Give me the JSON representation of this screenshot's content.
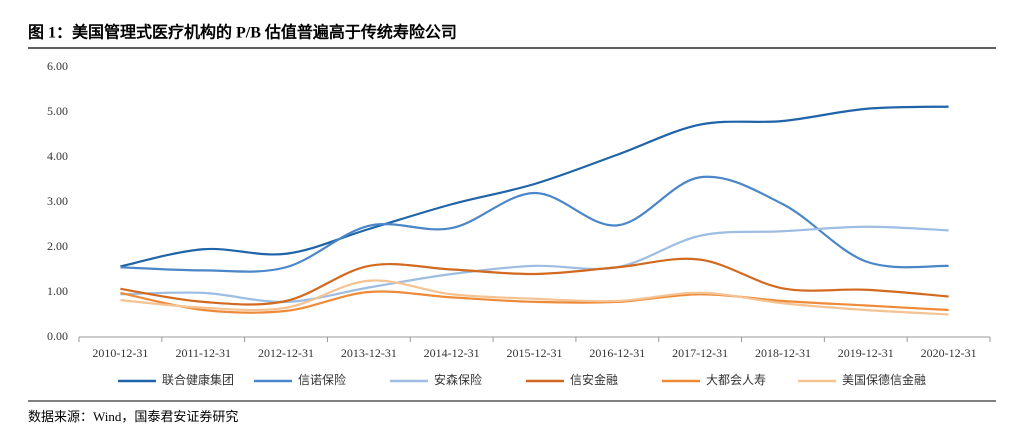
{
  "chart_data": {
    "type": "line",
    "title": "图 1：美国管理式医疗机构的 P/B 估值普遍高于传统寿险公司",
    "source": "数据来源：Wind，国泰君安证券研究",
    "categories": [
      "2010-12-31",
      "2011-12-31",
      "2012-12-31",
      "2013-12-31",
      "2014-12-31",
      "2015-12-31",
      "2016-12-31",
      "2017-12-31",
      "2018-12-31",
      "2019-12-31",
      "2020-12-31"
    ],
    "series": [
      {
        "name": "联合健康集团",
        "color": "#1f64a8",
        "values": [
          1.57,
          1.95,
          1.85,
          2.4,
          2.95,
          3.4,
          4.05,
          4.72,
          4.8,
          5.07,
          5.12
        ]
      },
      {
        "name": "信诺保险",
        "color": "#4a86c8",
        "values": [
          1.55,
          1.48,
          1.55,
          2.47,
          2.42,
          3.2,
          2.48,
          3.55,
          2.95,
          1.68,
          1.58
        ]
      },
      {
        "name": "安森保险",
        "color": "#9dbde3",
        "values": [
          0.95,
          0.98,
          0.78,
          1.1,
          1.4,
          1.58,
          1.55,
          2.25,
          2.35,
          2.45,
          2.37
        ]
      },
      {
        "name": "信安金融",
        "color": "#d2691e",
        "values": [
          1.07,
          0.78,
          0.8,
          1.58,
          1.5,
          1.4,
          1.55,
          1.72,
          1.08,
          1.05,
          0.9
        ]
      },
      {
        "name": "大都会人寿",
        "color": "#ed8b3a",
        "values": [
          0.98,
          0.6,
          0.58,
          1.0,
          0.88,
          0.78,
          0.78,
          0.95,
          0.8,
          0.7,
          0.6
        ]
      },
      {
        "name": "美国保德信金融",
        "color": "#f5c291",
        "values": [
          0.82,
          0.65,
          0.65,
          1.25,
          0.95,
          0.85,
          0.8,
          0.98,
          0.75,
          0.6,
          0.5
        ]
      }
    ],
    "ylim": [
      0,
      6
    ],
    "yticks": [
      {
        "value": 0,
        "label": "0.00"
      },
      {
        "value": 1,
        "label": "1.00"
      },
      {
        "value": 2,
        "label": "2.00"
      },
      {
        "value": 3,
        "label": "3.00"
      },
      {
        "value": 4,
        "label": "4.00"
      },
      {
        "value": 5,
        "label": "5.00"
      },
      {
        "value": 6,
        "label": "6.00"
      }
    ],
    "grid": false,
    "smooth": true
  }
}
